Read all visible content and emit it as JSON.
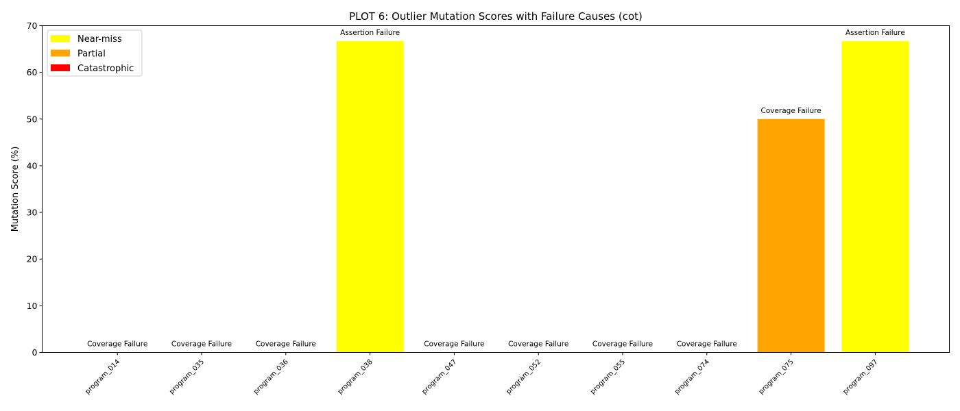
{
  "chart_data": {
    "type": "bar",
    "title": "PLOT 6: Outlier Mutation Scores with Failure Causes (cot)",
    "xlabel": "",
    "ylabel": "Mutation Score (%)",
    "ylim": [
      0,
      70
    ],
    "yticks": [
      0,
      10,
      20,
      30,
      40,
      50,
      60,
      70
    ],
    "grid": false,
    "legend_position": "upper-left",
    "categories": [
      "program_014",
      "program_035",
      "program_036",
      "program_038",
      "program_047",
      "program_052",
      "program_055",
      "program_074",
      "program_075",
      "program_097"
    ],
    "values": [
      0,
      0,
      0,
      66.67,
      0,
      0,
      0,
      0,
      50.0,
      66.67
    ],
    "annotations": [
      "Coverage Failure",
      "Coverage Failure",
      "Coverage Failure",
      "Assertion Failure",
      "Coverage Failure",
      "Coverage Failure",
      "Coverage Failure",
      "Coverage Failure",
      "Coverage Failure",
      "Assertion Failure"
    ],
    "bar_classes": [
      "Catastrophic",
      "Catastrophic",
      "Catastrophic",
      "Near-miss",
      "Catastrophic",
      "Catastrophic",
      "Catastrophic",
      "Catastrophic",
      "Partial",
      "Near-miss"
    ],
    "legend": [
      {
        "label": "Near-miss",
        "color": "#ffff00"
      },
      {
        "label": "Partial",
        "color": "#ffa500"
      },
      {
        "label": "Catastrophic",
        "color": "#ff0000"
      }
    ]
  }
}
